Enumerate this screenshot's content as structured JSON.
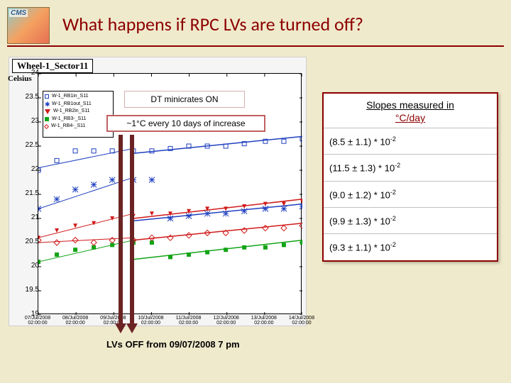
{
  "title": "What happens if RPC LVs are turned off?",
  "logo_label": "CMS",
  "chart": {
    "type": "scatter+line",
    "title": "Wheel-1_Sector11",
    "ylabel": "Celsius",
    "background_color": "#f5f5f5",
    "plot_bg": "#ffffff",
    "ylim": [
      19,
      24
    ],
    "yticks": [
      19,
      19.5,
      20,
      20.5,
      21,
      21.5,
      22,
      22.5,
      23,
      23.5,
      24
    ],
    "xticks": [
      "07/Jul/2008 02:00:00",
      "08/Jul/2008 02:00:00",
      "09/Jul/2008 02:00:00",
      "10/Jul/2008 02:00:00",
      "11/Jul/2008 02:00:00",
      "12/Jul/2008 02:00:00",
      "13/Jul/2008 02:00:00",
      "14/Jul/2008 02:00:00"
    ],
    "legend": [
      {
        "label": "W-1_RB1in_S11",
        "color": "#1f3fbf",
        "marker": "square-open"
      },
      {
        "label": "W-1_RB1out_S11",
        "color": "#1f3fbf",
        "marker": "star"
      },
      {
        "label": "W-1_RB2in_S11",
        "color": "#d11919",
        "marker": "triangle-down"
      },
      {
        "label": "W-1_RB3-_S11",
        "color": "#12a416",
        "marker": "square"
      },
      {
        "label": "W-1_RB4-_S11",
        "color": "#d11919",
        "marker": "diamond-open"
      }
    ],
    "series": [
      {
        "name": "W-1_RB1in_S11",
        "color": "#1f3fbf",
        "marker": "square-open",
        "x": [
          0,
          0.07,
          0.14,
          0.21,
          0.28,
          0.36,
          0.43,
          0.5,
          0.57,
          0.64,
          0.71,
          0.78,
          0.86,
          0.93,
          1.0
        ],
        "y": [
          22.0,
          22.2,
          22.4,
          22.4,
          22.4,
          22.4,
          22.4,
          22.45,
          22.5,
          22.5,
          22.5,
          22.55,
          22.6,
          22.6,
          22.65
        ]
      },
      {
        "name": "W-1_RB1out_S11",
        "color": "#1f3fbf",
        "marker": "star",
        "x": [
          0,
          0.07,
          0.14,
          0.21,
          0.28,
          0.36,
          0.43,
          0.5,
          0.57,
          0.64,
          0.71,
          0.78,
          0.86,
          0.93,
          1.0
        ],
        "y": [
          21.2,
          21.4,
          21.6,
          21.7,
          21.8,
          21.8,
          21.8,
          21.0,
          21.05,
          21.1,
          21.1,
          21.15,
          21.2,
          21.2,
          21.25
        ]
      },
      {
        "name": "W-1_RB2in_S11",
        "color": "#d11919",
        "marker": "triangle-down",
        "x": [
          0,
          0.07,
          0.14,
          0.21,
          0.28,
          0.36,
          0.43,
          0.5,
          0.57,
          0.64,
          0.71,
          0.78,
          0.86,
          0.93,
          1.0
        ],
        "y": [
          20.6,
          20.75,
          20.85,
          20.9,
          21.0,
          21.05,
          21.1,
          21.1,
          21.15,
          21.2,
          21.2,
          21.25,
          21.3,
          21.3,
          21.35
        ]
      },
      {
        "name": "W-1_RB3-_S11",
        "color": "#12a416",
        "marker": "square",
        "x": [
          0,
          0.07,
          0.14,
          0.21,
          0.28,
          0.36,
          0.43,
          0.5,
          0.57,
          0.64,
          0.71,
          0.78,
          0.86,
          0.93,
          1.0
        ],
        "y": [
          20.1,
          20.25,
          20.35,
          20.4,
          20.45,
          20.5,
          20.5,
          20.2,
          20.25,
          20.3,
          20.35,
          20.4,
          20.4,
          20.45,
          20.5
        ]
      },
      {
        "name": "W-1_RB4-_S11",
        "color": "#d11919",
        "marker": "diamond-open",
        "x": [
          0,
          0.07,
          0.14,
          0.21,
          0.28,
          0.36,
          0.43,
          0.5,
          0.57,
          0.64,
          0.71,
          0.78,
          0.86,
          0.93,
          1.0
        ],
        "y": [
          20.55,
          20.5,
          20.55,
          20.5,
          20.55,
          20.55,
          20.6,
          20.6,
          20.65,
          20.7,
          20.7,
          20.75,
          20.8,
          20.8,
          20.85
        ]
      }
    ],
    "fit_lines": [
      {
        "color": "#1f3fbf",
        "x0": 0.36,
        "y0": 22.35,
        "x1": 1.0,
        "y1": 22.7,
        "width": 1
      },
      {
        "color": "#1f3fbf",
        "x0": 0.36,
        "y0": 20.95,
        "x1": 1.0,
        "y1": 21.3,
        "width": 1
      },
      {
        "color": "#d11919",
        "x0": 0.36,
        "y0": 21.0,
        "x1": 1.0,
        "y1": 21.4,
        "width": 1
      },
      {
        "color": "#12a416",
        "x0": 0.36,
        "y0": 20.15,
        "x1": 1.0,
        "y1": 20.55,
        "width": 1
      },
      {
        "color": "#d11919",
        "x0": 0.36,
        "y0": 20.55,
        "x1": 1.0,
        "y1": 20.9,
        "width": 1
      }
    ],
    "fit_history_lines": [
      {
        "color": "#1f3fbf",
        "x0": 0.0,
        "y0": 22.05,
        "x1": 0.36,
        "y1": 22.45
      },
      {
        "color": "#1f3fbf",
        "x0": 0.0,
        "y0": 21.2,
        "x1": 0.36,
        "y1": 21.85
      },
      {
        "color": "#d11919",
        "x0": 0.0,
        "y0": 20.6,
        "x1": 0.36,
        "y1": 21.1
      },
      {
        "color": "#12a416",
        "x0": 0.0,
        "y0": 20.1,
        "x1": 0.36,
        "y1": 20.55
      },
      {
        "color": "#d11919",
        "x0": 0.0,
        "y0": 20.5,
        "x1": 0.36,
        "y1": 20.6
      }
    ]
  },
  "annotations": {
    "dt_on": "DT minicrates ON",
    "increase": "~1°C every 10 days of increase",
    "lvs_off": "LVs OFF from 09/07/2008 7 pm"
  },
  "slopes": {
    "header": "Slopes measured in",
    "unit": "°C/day",
    "rows": [
      {
        "text": "(8.5 ± 1.1) * 10",
        "exp": "-2",
        "color": "#1f3fbf"
      },
      {
        "text": "(11.5 ± 1.3) * 10",
        "exp": "-2",
        "color": "#1f3fbf"
      },
      {
        "text": "(9.0 ± 1.2) * 10",
        "exp": "-2",
        "color": "#12a416"
      },
      {
        "text": "(9.9 ± 1.3) * 10",
        "exp": "-2",
        "color": "#d11919"
      },
      {
        "text": "(9.3 ± 1.1) * 10",
        "exp": "-2",
        "color": "#d11919"
      }
    ]
  },
  "colors": {
    "title_color": "#8b0000",
    "page_bg": "#f0eacc"
  }
}
